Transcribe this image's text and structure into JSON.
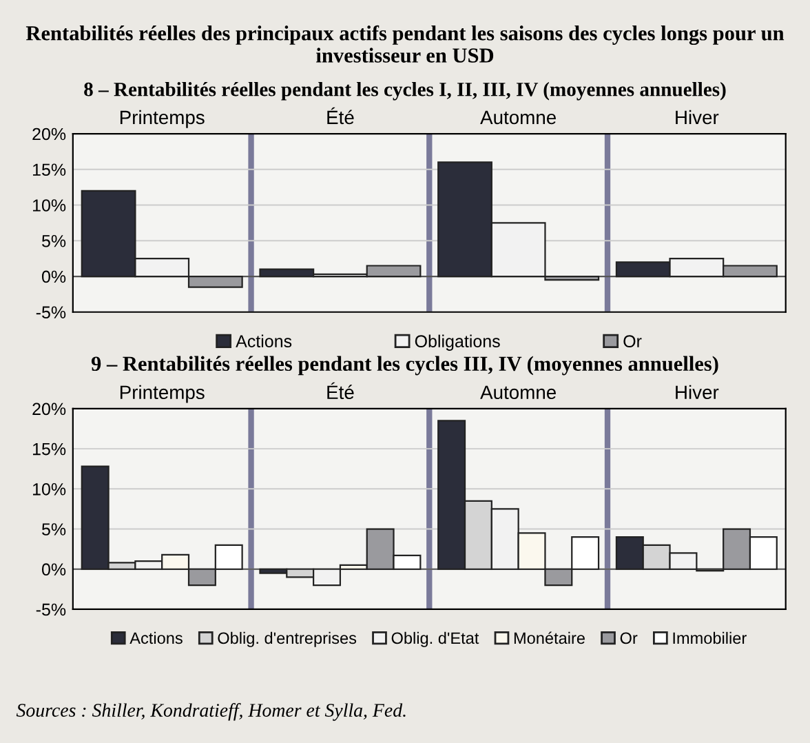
{
  "chart_data": [
    {
      "type": "bar",
      "title": "Rentabilités réelles des principaux actifs pendant les saisons des cycles longs pour un investisseur en USD",
      "subtitle": "8 – Rentabilités réelles pendant les cycles I, II, III, IV (moyennes annuelles)",
      "categories": [
        "Printemps",
        "Été",
        "Automne",
        "Hiver"
      ],
      "series": [
        {
          "name": "Actions",
          "color": "#2b2d3a",
          "values": [
            12,
            1,
            16,
            2
          ]
        },
        {
          "name": "Obligations",
          "color": "#f2f2f2",
          "values": [
            2.5,
            0.3,
            7.5,
            2.5
          ]
        },
        {
          "name": "Or",
          "color": "#9a9a9e",
          "values": [
            -1.5,
            1.5,
            -0.5,
            1.5
          ]
        }
      ],
      "ylim": [
        -5,
        20
      ],
      "yticks": [
        {
          "value": -5,
          "label": "-5%"
        },
        {
          "value": 0,
          "label": "0%"
        },
        {
          "value": 5,
          "label": "5%"
        },
        {
          "value": 10,
          "label": "10%"
        },
        {
          "value": 15,
          "label": "15%"
        },
        {
          "value": 20,
          "label": "20%"
        }
      ],
      "grid": "y",
      "legend": "bottom"
    },
    {
      "type": "bar",
      "title": "9 – Rentabilités réelles pendant les cycles III, IV (moyennes annuelles)",
      "categories": [
        "Printemps",
        "Été",
        "Automne",
        "Hiver"
      ],
      "series": [
        {
          "name": "Actions",
          "color": "#2b2d3a",
          "values": [
            12.8,
            -0.5,
            18.5,
            4
          ]
        },
        {
          "name": "Oblig. d'entreprises",
          "color": "#d4d4d4",
          "values": [
            0.8,
            -1,
            8.5,
            3
          ]
        },
        {
          "name": "Oblig. d'Etat",
          "color": "#f2f2f2",
          "values": [
            1,
            -2,
            7.5,
            2
          ]
        },
        {
          "name": "Monétaire",
          "color": "#fbf8ee",
          "values": [
            1.8,
            0.5,
            4.5,
            -0.2
          ]
        },
        {
          "name": "Or",
          "color": "#9a9a9e",
          "values": [
            -2,
            5,
            -2,
            5
          ]
        },
        {
          "name": "Immobilier",
          "color": "#ffffff",
          "values": [
            3,
            1.7,
            4,
            4
          ]
        }
      ],
      "ylim": [
        -5,
        20
      ],
      "yticks": [
        {
          "value": -5,
          "label": "-5%"
        },
        {
          "value": 0,
          "label": "0%"
        },
        {
          "value": 5,
          "label": "5%"
        },
        {
          "value": 10,
          "label": "10%"
        },
        {
          "value": 15,
          "label": "15%"
        },
        {
          "value": 20,
          "label": "20%"
        }
      ],
      "grid": "y",
      "legend": "bottom",
      "annotations": [
        "Sources : Shiller, Kondratieff, Homer et Sylla, Fed."
      ]
    }
  ]
}
